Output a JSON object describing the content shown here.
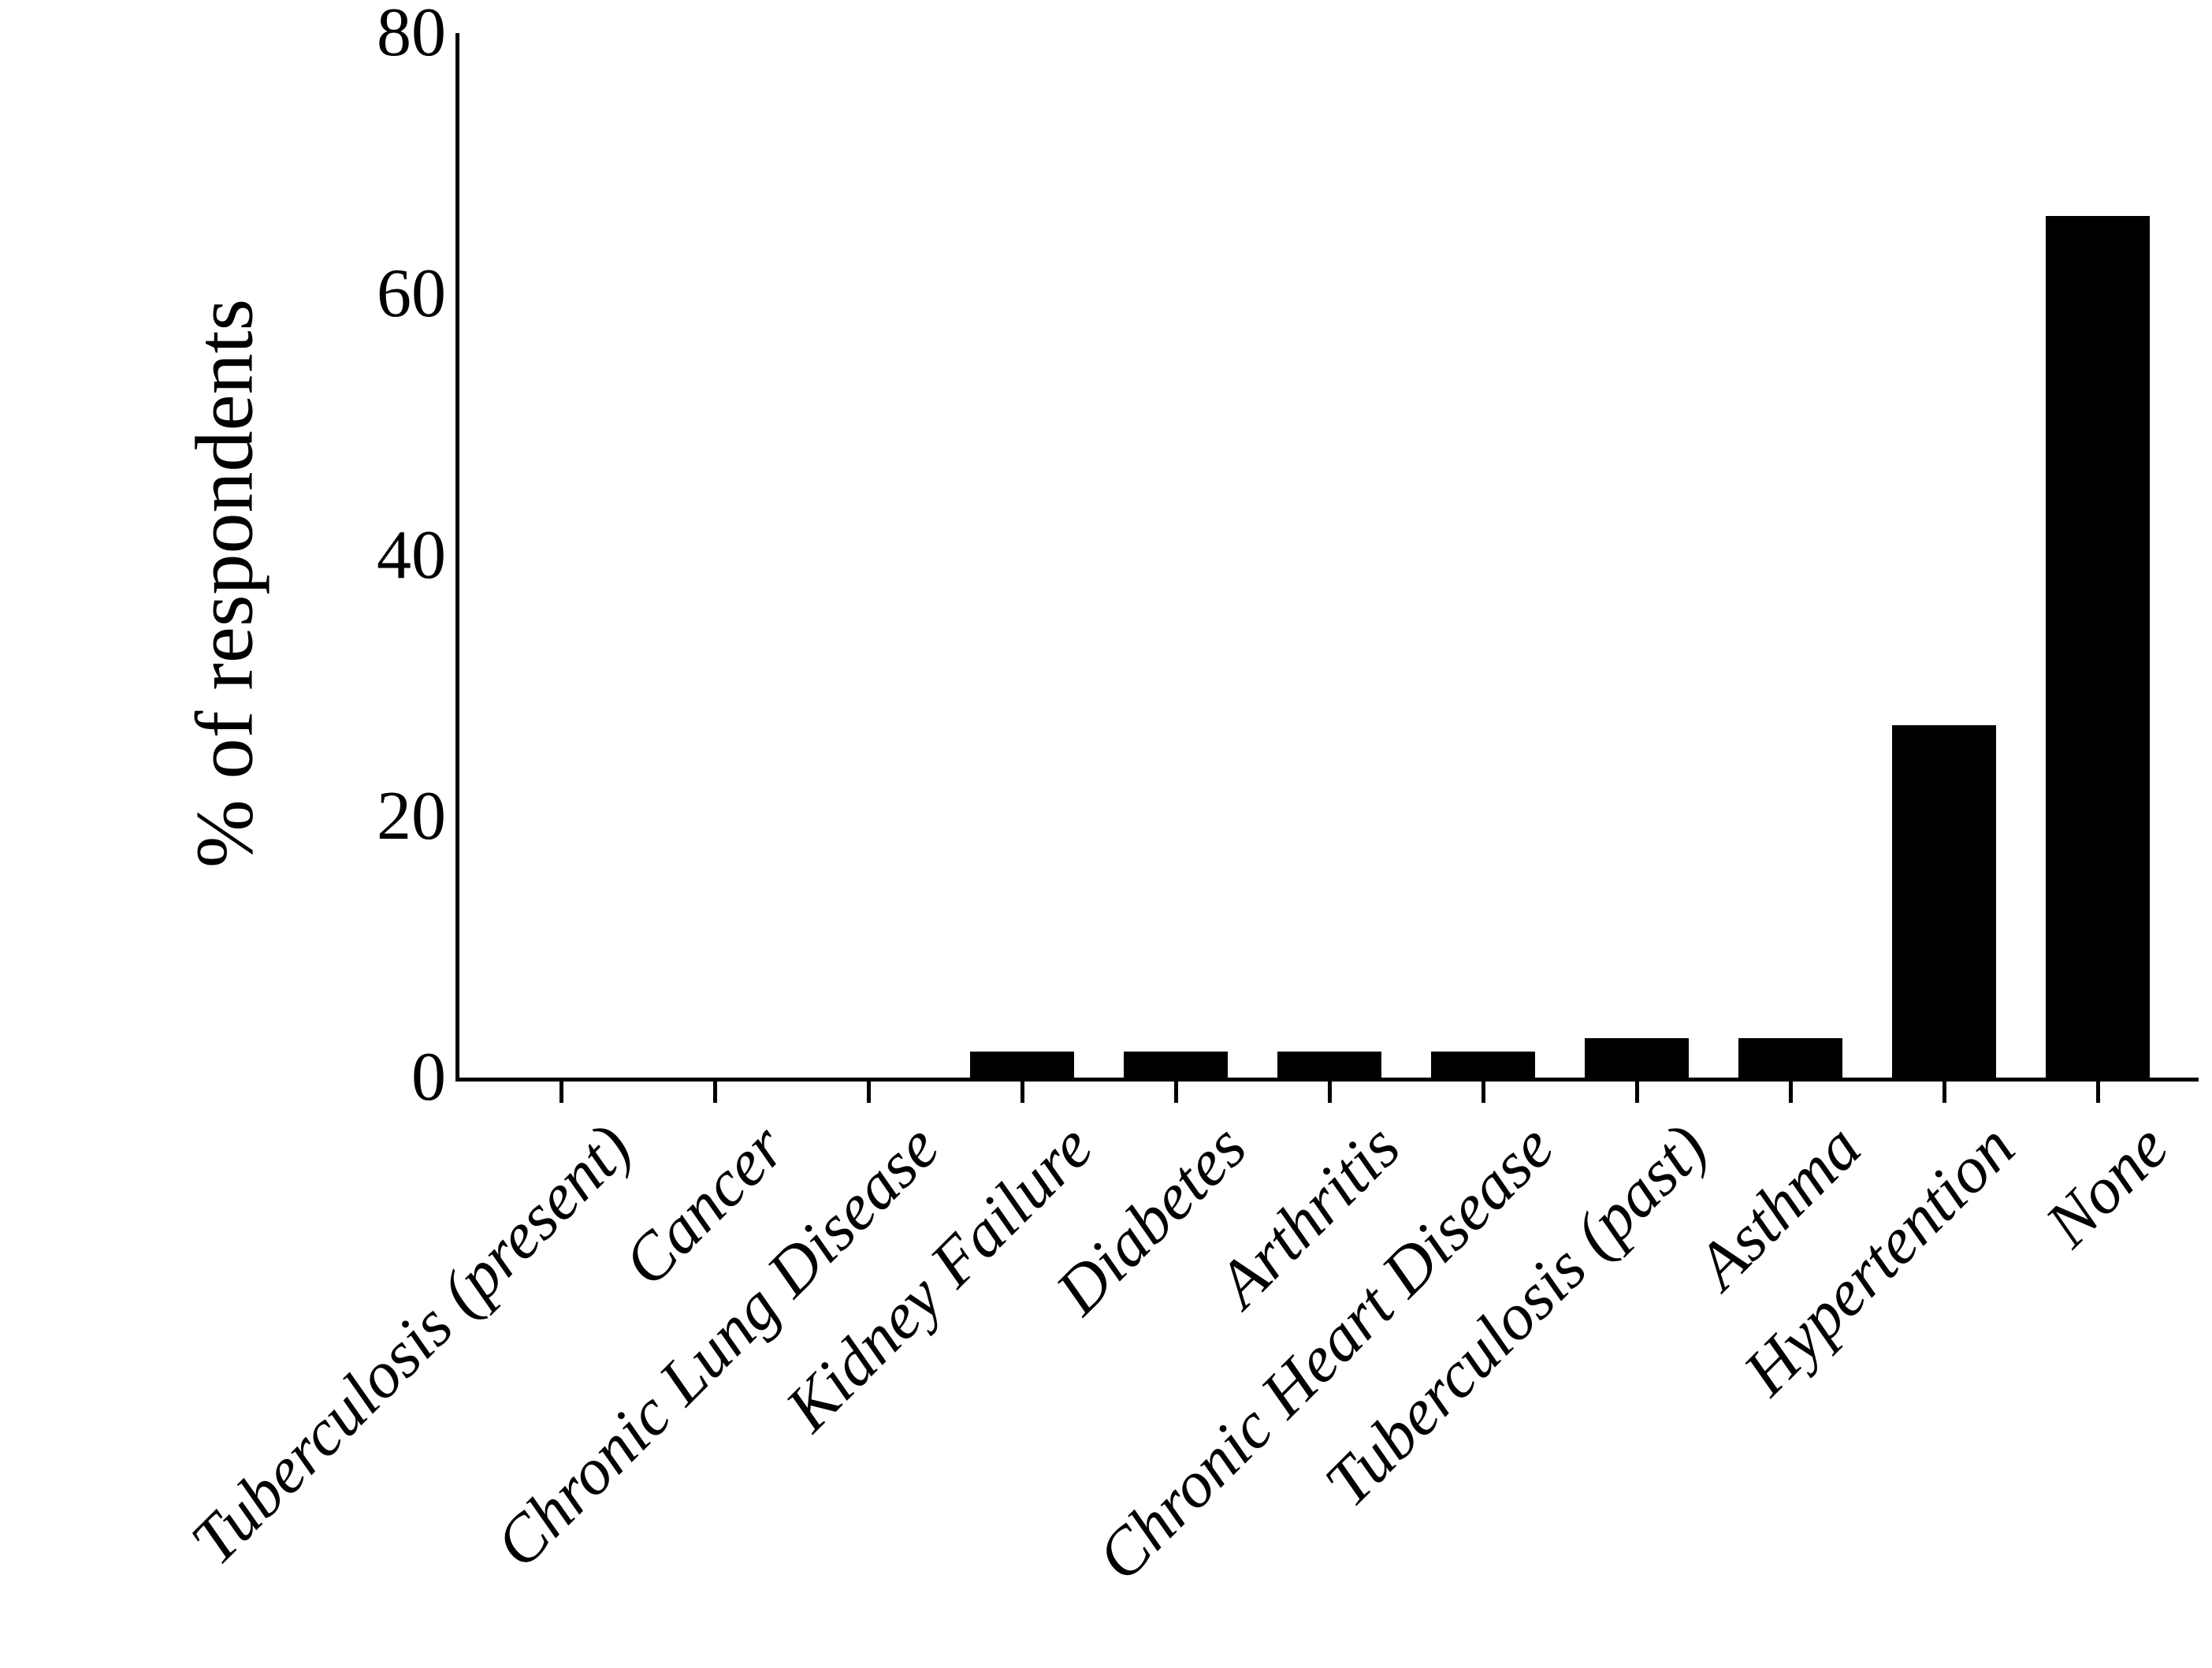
{
  "chart_data": {
    "type": "bar",
    "title": "",
    "xlabel": "",
    "ylabel": "% of respondents",
    "categories": [
      "Tuberculosis (present)",
      "Cancer",
      "Chronic Lung Disease",
      "Kidney Failure",
      "Diabetes",
      "Arthritis",
      "Chronic Heart Disease",
      "Tuberculosis (past)",
      "Asthma",
      "Hypertention",
      "None"
    ],
    "values": [
      0,
      0,
      0,
      2,
      2,
      2,
      2,
      3,
      3,
      27,
      66
    ],
    "ylim": [
      0,
      80
    ],
    "yticks": [
      0,
      20,
      40,
      60,
      80
    ],
    "bar_color": "#000000",
    "axis_color": "#000000",
    "background_color": "#ffffff",
    "grid": false,
    "legend": "none",
    "x_tick_label_rotation_deg": 45,
    "x_tick_label_style": "italic"
  }
}
